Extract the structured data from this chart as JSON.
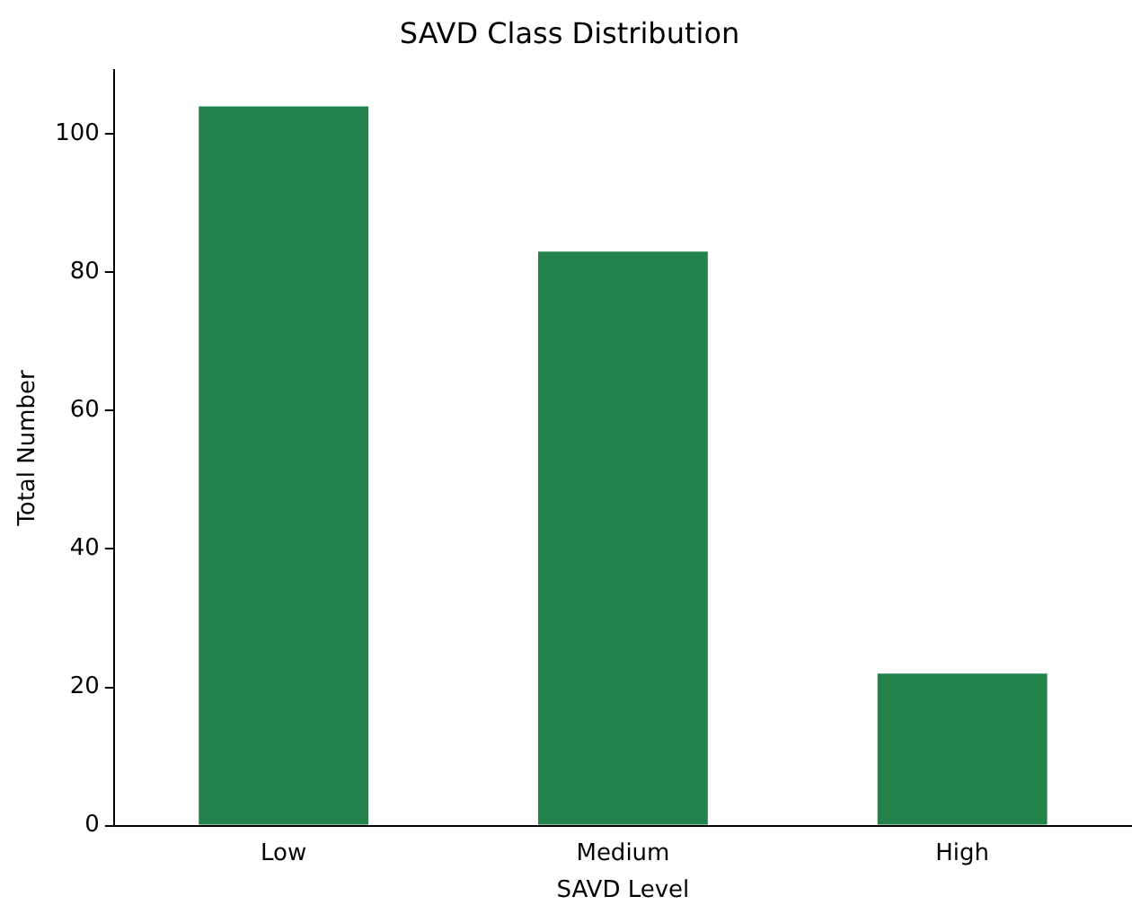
{
  "chart_data": {
    "type": "bar",
    "title": "SAVD Class Distribution",
    "xlabel": "SAVD Level",
    "ylabel": "Total Number",
    "categories": [
      "Low",
      "Medium",
      "High"
    ],
    "values": [
      104,
      83,
      22
    ],
    "color": "#23834a",
    "ylim": [
      0,
      109.2
    ],
    "yticks": [
      0,
      20,
      40,
      60,
      80,
      100
    ],
    "grid": false,
    "legend": false
  }
}
